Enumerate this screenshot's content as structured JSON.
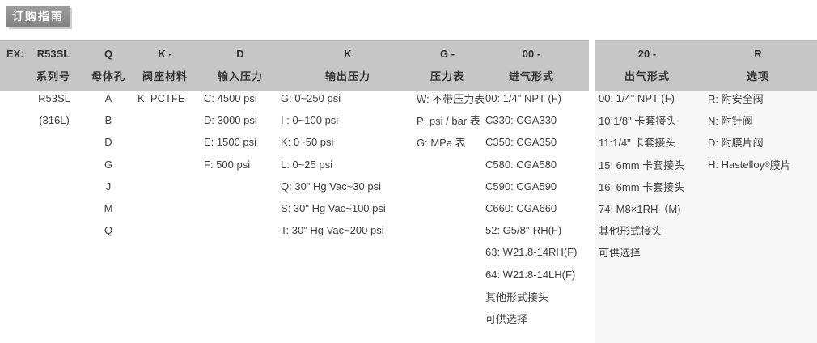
{
  "title_tab": "订购指南",
  "colors": {
    "header_bg": "#c6c6c6",
    "right_panel_bg": "#f7f7f7",
    "tab_bg": "#8c8c8c",
    "tab_text": "#ffffff",
    "text": "#3d3d3d"
  },
  "ordering_table": {
    "example_label": "EX:",
    "columns": [
      {
        "code": "R53SL",
        "label": "系列号",
        "items": [
          "R53SL",
          "(316L)"
        ]
      },
      {
        "code": "Q",
        "label": "母体孔",
        "items": [
          "A",
          "B",
          "D",
          "G",
          "J",
          "M",
          "Q"
        ]
      },
      {
        "code": "K -",
        "label": "阀座材料",
        "items": [
          "K: PCTFE"
        ]
      },
      {
        "code": "D",
        "label": "输入压力",
        "items": [
          "C: 4500 psi",
          "D: 3000 psi",
          "E: 1500 psi",
          "F: 500 psi"
        ]
      },
      {
        "code": "K",
        "label": "输出压力",
        "items": [
          "G: 0~250 psi",
          "I : 0~100 psi",
          "K: 0~50 psi",
          "L: 0~25 psi",
          "Q: 30\" Hg Vac~30 psi",
          "S: 30\" Hg Vac~100 psi",
          "T: 30\" Hg Vac~200 psi"
        ]
      },
      {
        "code": "G -",
        "label": "压力表",
        "items": [
          "W: 不带压力表",
          "P: psi / bar 表",
          "G: MPa 表"
        ]
      },
      {
        "code": "00 -",
        "label": "进气形式",
        "items": [
          "00: 1/4\" NPT (F)",
          "C330: CGA330",
          "C350: CGA350",
          "C580: CGA580",
          "C590: CGA590",
          "C660: CGA660",
          "52: G5/8\"-RH(F)",
          "63: W21.8-14RH(F)",
          "64: W21.8-14LH(F)",
          "其他形式接头",
          "可供选择"
        ]
      },
      {
        "code": "20 -",
        "label": "出气形式",
        "items": [
          "00: 1/4\" NPT (F)",
          "10:1/8\" 卡套接头",
          "11:1/4\" 卡套接头",
          "15: 6mm 卡套接头",
          "16: 6mm 卡套接头",
          "74: M8×1RH（M)",
          "其他形式接头",
          "可供选择"
        ]
      },
      {
        "code": "R",
        "label": "选项",
        "items": [
          "R: 附安全阀",
          "N: 附针阀",
          "D: 附膜片阀"
        ],
        "h_option": {
          "prefix": "H: Hastelloy",
          "sup": "®",
          "suffix": " 膜片"
        }
      }
    ]
  }
}
